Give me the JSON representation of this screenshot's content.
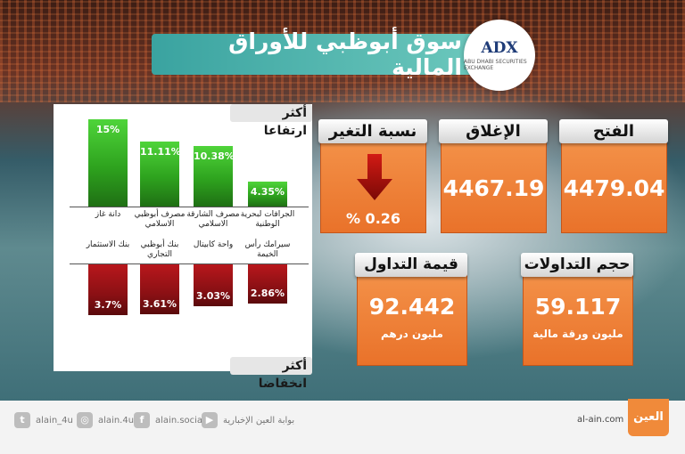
{
  "title": "سوق أبوظبي للأوراق المالية",
  "logo": {
    "mark": "ADX",
    "sub": "ABU DHABI SECURITIES EXCHANGE"
  },
  "gainers": {
    "heading": "أكثر ارتفاعا",
    "items": [
      {
        "name": "دانة غاز",
        "pct": "15%",
        "value": 15
      },
      {
        "name": "مصرف أبوظبي الاسلامي",
        "pct": "11.11%",
        "value": 11.11
      },
      {
        "name": "مصرف الشارقة الاسلامي",
        "pct": "10.38%",
        "value": 10.38
      },
      {
        "name": "الجرافات لبحرية الوطنية",
        "pct": "4.35%",
        "value": 4.35
      }
    ]
  },
  "losers": {
    "heading": "أكثر انخفاضا",
    "items": [
      {
        "name": "بنك الاستثمار",
        "pct": "3.7%",
        "value": 3.7
      },
      {
        "name": "بنك أبوظبي التجاري",
        "pct": "3.61%",
        "value": 3.61
      },
      {
        "name": "واحة كابيتال",
        "pct": "3.03%",
        "value": 3.03
      },
      {
        "name": "سيرامك رأس الخيمة",
        "pct": "2.86%",
        "value": 2.86
      }
    ]
  },
  "open": {
    "label": "الفتح",
    "value": "4479.04"
  },
  "close": {
    "label": "الإغلاق",
    "value": "4467.19"
  },
  "change": {
    "label": "نسبة التغير",
    "value": "% 0.26",
    "direction": "down"
  },
  "volume": {
    "label": "حجم التداولات",
    "value": "59.117",
    "unit": "مليون ورقة مالية"
  },
  "turnover": {
    "label": "قيمة التداول",
    "value": "92.442",
    "unit": "مليون درهم"
  },
  "footer": {
    "twitter": "alain_4u",
    "instagram": "alain.4u",
    "facebook": "alain.social",
    "youtube": "بوابة العين الإخبارية",
    "site": "al-ain.com",
    "brand": "العين"
  },
  "colors": {
    "card": "#ee7f36",
    "gain": "#2ea31e",
    "loss": "#8a1014",
    "title": "#4db3ac"
  }
}
